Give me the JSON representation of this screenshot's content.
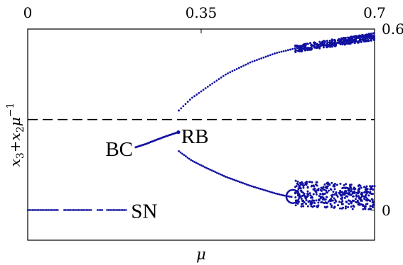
{
  "chart_data": {
    "type": "scatter",
    "title": "",
    "xlabel": "μ",
    "ylabel_parts": {
      "x3": "x",
      "sub3": "3",
      "plus": "+",
      "x2": "x",
      "sub2": "2",
      "mu": "μ",
      "exp": "−1"
    },
    "xlim": [
      0,
      0.7
    ],
    "ylim": [
      -0.1,
      0.6
    ],
    "x_ticks_top": [
      {
        "value": 0,
        "label": "0"
      },
      {
        "value": 0.35,
        "label": "0.35"
      },
      {
        "value": 0.7,
        "label": "0.7"
      }
    ],
    "y_ticks_right": [
      {
        "value": 0.6,
        "label": "0.6"
      },
      {
        "value": 0,
        "label": "0"
      }
    ],
    "grid": false,
    "marker_color": "#1010a0",
    "reference_line": {
      "y": 0.3,
      "style": "dashed",
      "color": "#000000"
    },
    "annotations": [
      {
        "text": "BC",
        "x": 0.16,
        "y": 0.205
      },
      {
        "text": "RB",
        "x": 0.305,
        "y": 0.25
      },
      {
        "text": "SN",
        "x": 0.21,
        "y": 0.0
      }
    ],
    "series": [
      {
        "id": "sn-branch",
        "x_range": [
          0.0,
          0.2
        ],
        "y": 0.0,
        "gaps": [
          [
            0.062,
            0.072
          ],
          [
            0.13,
            0.138
          ],
          [
            0.152,
            0.16
          ]
        ]
      },
      {
        "id": "bc-branch",
        "x": [
          0.218,
          0.24,
          0.26,
          0.28,
          0.298,
          0.304
        ],
        "y": [
          0.208,
          0.22,
          0.233,
          0.245,
          0.255,
          0.258
        ]
      },
      {
        "id": "upper-branch",
        "x": [
          0.305,
          0.33,
          0.36,
          0.4,
          0.45,
          0.5,
          0.55,
          0.6,
          0.65,
          0.7
        ],
        "y": [
          0.33,
          0.37,
          0.405,
          0.45,
          0.49,
          0.52,
          0.54,
          0.555,
          0.565,
          0.575
        ]
      },
      {
        "id": "lower-branch",
        "x": [
          0.305,
          0.33,
          0.36,
          0.4,
          0.45,
          0.5,
          0.52,
          0.535
        ],
        "y": [
          0.195,
          0.165,
          0.14,
          0.11,
          0.08,
          0.055,
          0.047,
          0.043
        ]
      },
      {
        "id": "upper-chaos",
        "x_range": [
          0.54,
          0.7
        ],
        "y_base": [
          0.535,
          0.575
        ],
        "spread": 0.012
      },
      {
        "id": "lower-chaos",
        "x_range": [
          0.54,
          0.7
        ],
        "y_range": [
          0.0,
          0.1
        ]
      },
      {
        "id": "loop",
        "center_x": 0.535,
        "center_y": 0.045,
        "radius_x": 0.013,
        "radius_y": 0.022
      }
    ]
  }
}
